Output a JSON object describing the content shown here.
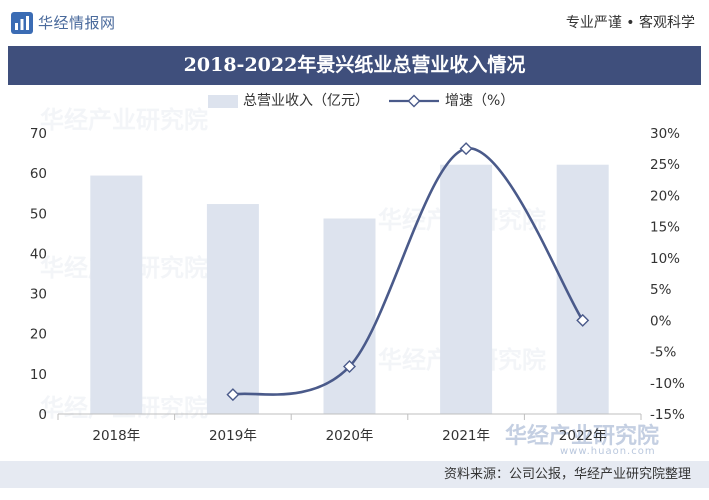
{
  "header": {
    "logo_text": "华经情报网",
    "logo_icon": "bar-chart-logo-icon",
    "slogan": "专业严谨 • 客观科学"
  },
  "chart_data": {
    "type": "bar",
    "title": "2018-2022年景兴纸业总营业收入情况",
    "categories": [
      "2018年",
      "2019年",
      "2020年",
      "2021年",
      "2022年"
    ],
    "series": [
      {
        "name": "总营业收入（亿元）",
        "type": "bar",
        "axis": "left",
        "values": [
          59.4,
          52.3,
          48.7,
          62.1,
          62.1
        ]
      },
      {
        "name": "增速（%）",
        "type": "line",
        "smooth": true,
        "marker": "diamond",
        "axis": "right",
        "values": [
          null,
          -11.9,
          -7.4,
          27.5,
          0.0
        ]
      }
    ],
    "y_left": {
      "ylim": [
        0,
        70
      ],
      "ticks": [
        0,
        10,
        20,
        30,
        40,
        50,
        60,
        70
      ],
      "tick_labels": [
        "0",
        "10",
        "20",
        "30",
        "40",
        "50",
        "60",
        "70"
      ]
    },
    "y_right": {
      "ylim": [
        -15,
        30
      ],
      "ticks": [
        -15,
        -10,
        -5,
        0,
        5,
        10,
        15,
        20,
        25,
        30
      ],
      "tick_labels": [
        "-15%",
        "-10%",
        "-5%",
        "0%",
        "5%",
        "10%",
        "15%",
        "20%",
        "25%",
        "30%"
      ]
    },
    "xlabel": "",
    "ylabel": "",
    "grid": false,
    "legend": "top-center",
    "colors": {
      "bar": "#dde3ee",
      "line": "#4a5a8a",
      "marker_fill": "#ffffff",
      "axis": "#bfbfbf"
    }
  },
  "theme": {
    "banner": "#3f4f7c",
    "footer_band": "#e6eaf2",
    "logo_blue": "#3b6cb4"
  },
  "footer": {
    "source": "资料来源：公司公报，华经产业研究院整理"
  },
  "watermark": {
    "text": "华经产业研究院",
    "url": "www.huaon.com"
  }
}
